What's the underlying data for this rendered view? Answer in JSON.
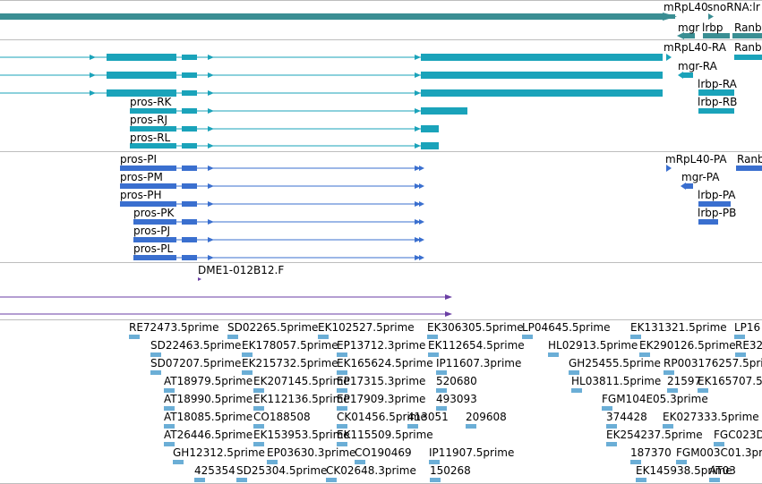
{
  "colors": {
    "gene": "#3a8e93",
    "transcript": "#1aa3ba",
    "protein": "#3a6fcf",
    "clone": "#6a3ea4",
    "est": "#6baed6",
    "separator": "#bdbdbd"
  },
  "track_gene": {
    "labels": [
      "mRpL40",
      "snoRNA:lr",
      "mgr",
      "lrbp",
      "Ranb"
    ]
  },
  "track_transcripts": {
    "right_labels": [
      "mRpL40-RA",
      "Ranb",
      "mgr-RA",
      "lrbp-RA",
      "lrbp-RB"
    ],
    "left_labels": [
      "pros-RK",
      "pros-RJ",
      "pros-RL"
    ]
  },
  "track_proteins": {
    "right_labels": [
      "mRpL40-PA",
      "Ranb",
      "mgr-PA",
      "lrbp-PA",
      "lrbp-PB"
    ],
    "left_labels": [
      "pros-PI",
      "pros-PM",
      "pros-PH",
      "pros-PK",
      "pros-PJ",
      "pros-PL"
    ]
  },
  "track_clone": {
    "label": "DME1-012B12.F"
  },
  "track_est": {
    "rows": [
      [
        "RE72473.5prime",
        "SD02265.5prime",
        "EK102527.5prime",
        "EK306305.5prime",
        "LP04645.5prime",
        "EK131321.5prime",
        "LP16"
      ],
      [
        "SD22463.5prime",
        "EK178057.5prime",
        "EP13712.3prime",
        "EK112654.5prime",
        "HL02913.5prime",
        "EK290126.5prime",
        "RE32"
      ],
      [
        "SD07207.5prime",
        "EK215732.5prime",
        "EK165624.5prime",
        "IP11607.3prime",
        "GH25455.5prime",
        "RP003176257.5prime"
      ],
      [
        "AT18979.5prime",
        "EK207145.5prime",
        "EP17315.3prime",
        "520680",
        "HL03811.5prime",
        "21597",
        "EK165707.5"
      ],
      [
        "AT18990.5prime",
        "EK112136.5prime",
        "EP17909.3prime",
        "493093",
        "FGM104E05.3prime"
      ],
      [
        "AT18085.5prime",
        "CO188508",
        "CK01456.5prime",
        "413051",
        "209608",
        "374428",
        "EK027333.5prime"
      ],
      [
        "AT26446.5prime",
        "EK153953.5prime",
        "EK115509.5prime",
        "EK254237.5prime",
        "FGC023D"
      ],
      [
        "GH12312.5prime",
        "EP03630.3prime",
        "CO190469",
        "IP11907.5prime",
        "187370",
        "FGM003C01.3prime"
      ],
      [
        "425354",
        "SD25304.5prime",
        "CK02648.3prime",
        "150268",
        "EK145938.5prime",
        "AT03"
      ]
    ]
  }
}
